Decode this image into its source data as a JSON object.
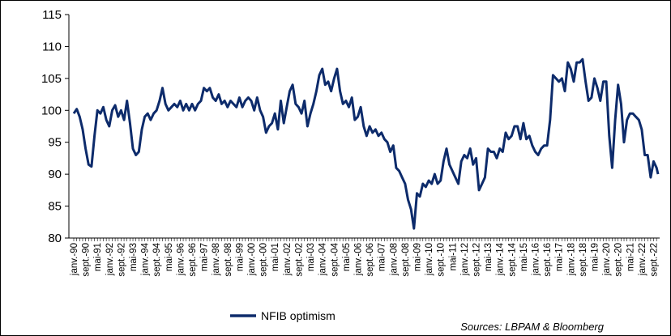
{
  "chart_data": {
    "type": "line",
    "title": "",
    "xlabel": "",
    "ylabel": "",
    "ylim": [
      80,
      115
    ],
    "y_ticks": [
      80,
      85,
      90,
      95,
      100,
      105,
      110,
      115
    ],
    "x_tick_labels": [
      "janv.-90",
      "sept.-90",
      "mai-91",
      "janv.-92",
      "sept.-92",
      "mai-93",
      "janv.-94",
      "sept.-94",
      "mai-95",
      "janv.-96",
      "sept.-96",
      "mai-97",
      "janv.-98",
      "sept.-98",
      "mai-99",
      "janv.-00",
      "sept.-00",
      "mai-01",
      "janv.-02",
      "sept.-02",
      "mai-03",
      "janv.-04",
      "sept.-04",
      "mai-05",
      "janv.-06",
      "sept.-06",
      "mai-07",
      "janv.-08",
      "sept.-08",
      "mai-09",
      "janv.-10",
      "sept.-10",
      "mai-11",
      "janv.-12",
      "sept.-12",
      "mai-13",
      "janv.-14",
      "sept.-14",
      "mai-15",
      "janv.-16",
      "sept.-16",
      "mai-17",
      "janv.-18",
      "sept.-18",
      "mai-19",
      "janv.-20",
      "sept.-20",
      "mai-21",
      "janv.-22",
      "sept.-22"
    ],
    "x_start": "1990-01",
    "x_end": "2022-12",
    "grid": false,
    "legend_position": "bottom-left",
    "series": [
      {
        "name": "NFIB optimism",
        "color": "#0d2b6b",
        "points": [
          [
            "1990-01",
            99.5
          ],
          [
            "1990-03",
            100.2
          ],
          [
            "1990-05",
            99.0
          ],
          [
            "1990-07",
            97.0
          ],
          [
            "1990-09",
            94.0
          ],
          [
            "1990-11",
            91.5
          ],
          [
            "1991-01",
            91.2
          ],
          [
            "1991-03",
            96.0
          ],
          [
            "1991-05",
            100.0
          ],
          [
            "1991-07",
            99.5
          ],
          [
            "1991-09",
            100.5
          ],
          [
            "1991-11",
            98.5
          ],
          [
            "1992-01",
            97.5
          ],
          [
            "1992-03",
            100.0
          ],
          [
            "1992-05",
            100.8
          ],
          [
            "1992-07",
            99.0
          ],
          [
            "1992-09",
            100.0
          ],
          [
            "1992-11",
            98.5
          ],
          [
            "1993-01",
            101.5
          ],
          [
            "1993-03",
            98.0
          ],
          [
            "1993-05",
            94.0
          ],
          [
            "1993-07",
            93.0
          ],
          [
            "1993-09",
            93.5
          ],
          [
            "1993-11",
            97.0
          ],
          [
            "1994-01",
            99.0
          ],
          [
            "1994-03",
            99.5
          ],
          [
            "1994-05",
            98.5
          ],
          [
            "1994-07",
            99.5
          ],
          [
            "1994-09",
            100.0
          ],
          [
            "1994-11",
            101.5
          ],
          [
            "1995-01",
            103.5
          ],
          [
            "1995-03",
            101.0
          ],
          [
            "1995-05",
            100.0
          ],
          [
            "1995-07",
            100.5
          ],
          [
            "1995-09",
            101.0
          ],
          [
            "1995-11",
            100.5
          ],
          [
            "1996-01",
            101.5
          ],
          [
            "1996-03",
            100.0
          ],
          [
            "1996-05",
            101.0
          ],
          [
            "1996-07",
            100.0
          ],
          [
            "1996-09",
            101.0
          ],
          [
            "1996-11",
            100.0
          ],
          [
            "1997-01",
            101.0
          ],
          [
            "1997-03",
            101.5
          ],
          [
            "1997-05",
            103.5
          ],
          [
            "1997-07",
            103.0
          ],
          [
            "1997-09",
            103.5
          ],
          [
            "1997-11",
            102.0
          ],
          [
            "1998-01",
            101.5
          ],
          [
            "1998-03",
            102.5
          ],
          [
            "1998-05",
            101.0
          ],
          [
            "1998-07",
            101.5
          ],
          [
            "1998-09",
            100.5
          ],
          [
            "1998-11",
            101.5
          ],
          [
            "1999-01",
            101.0
          ],
          [
            "1999-03",
            100.5
          ],
          [
            "1999-05",
            102.0
          ],
          [
            "1999-07",
            100.5
          ],
          [
            "1999-09",
            101.5
          ],
          [
            "1999-11",
            102.0
          ],
          [
            "2000-01",
            101.5
          ],
          [
            "2000-03",
            100.0
          ],
          [
            "2000-05",
            102.0
          ],
          [
            "2000-07",
            100.0
          ],
          [
            "2000-09",
            99.0
          ],
          [
            "2000-11",
            96.5
          ],
          [
            "2001-01",
            97.5
          ],
          [
            "2001-03",
            98.0
          ],
          [
            "2001-05",
            99.5
          ],
          [
            "2001-07",
            97.0
          ],
          [
            "2001-09",
            101.5
          ],
          [
            "2001-11",
            98.0
          ],
          [
            "2002-01",
            100.5
          ],
          [
            "2002-03",
            103.0
          ],
          [
            "2002-05",
            104.0
          ],
          [
            "2002-07",
            101.0
          ],
          [
            "2002-09",
            100.5
          ],
          [
            "2002-11",
            99.5
          ],
          [
            "2003-01",
            101.5
          ],
          [
            "2003-03",
            97.5
          ],
          [
            "2003-05",
            99.5
          ],
          [
            "2003-07",
            101.0
          ],
          [
            "2003-09",
            103.0
          ],
          [
            "2003-11",
            105.5
          ],
          [
            "2004-01",
            106.5
          ],
          [
            "2004-03",
            104.0
          ],
          [
            "2004-05",
            104.5
          ],
          [
            "2004-07",
            103.0
          ],
          [
            "2004-09",
            105.0
          ],
          [
            "2004-11",
            106.5
          ],
          [
            "2005-01",
            103.0
          ],
          [
            "2005-03",
            101.0
          ],
          [
            "2005-05",
            101.5
          ],
          [
            "2005-07",
            100.5
          ],
          [
            "2005-09",
            102.0
          ],
          [
            "2005-11",
            98.5
          ],
          [
            "2006-01",
            99.0
          ],
          [
            "2006-03",
            100.5
          ],
          [
            "2006-05",
            97.5
          ],
          [
            "2006-07",
            96.0
          ],
          [
            "2006-09",
            97.5
          ],
          [
            "2006-11",
            96.5
          ],
          [
            "2007-01",
            97.0
          ],
          [
            "2007-03",
            96.0
          ],
          [
            "2007-05",
            96.5
          ],
          [
            "2007-07",
            95.5
          ],
          [
            "2007-09",
            95.0
          ],
          [
            "2007-11",
            93.5
          ],
          [
            "2008-01",
            94.5
          ],
          [
            "2008-03",
            91.0
          ],
          [
            "2008-05",
            90.5
          ],
          [
            "2008-07",
            89.5
          ],
          [
            "2008-09",
            88.5
          ],
          [
            "2008-11",
            86.0
          ],
          [
            "2009-01",
            84.5
          ],
          [
            "2009-03",
            81.5
          ],
          [
            "2009-05",
            87.0
          ],
          [
            "2009-07",
            86.5
          ],
          [
            "2009-09",
            88.5
          ],
          [
            "2009-11",
            88.0
          ],
          [
            "2010-01",
            89.0
          ],
          [
            "2010-03",
            88.5
          ],
          [
            "2010-05",
            90.0
          ],
          [
            "2010-07",
            88.5
          ],
          [
            "2010-09",
            89.0
          ],
          [
            "2010-11",
            92.0
          ],
          [
            "2011-01",
            94.0
          ],
          [
            "2011-03",
            91.5
          ],
          [
            "2011-05",
            90.5
          ],
          [
            "2011-07",
            89.5
          ],
          [
            "2011-09",
            88.5
          ],
          [
            "2011-11",
            92.0
          ],
          [
            "2012-01",
            93.0
          ],
          [
            "2012-03",
            92.5
          ],
          [
            "2012-05",
            94.0
          ],
          [
            "2012-07",
            91.5
          ],
          [
            "2012-09",
            92.5
          ],
          [
            "2012-11",
            87.5
          ],
          [
            "2013-01",
            88.5
          ],
          [
            "2013-03",
            89.5
          ],
          [
            "2013-05",
            94.0
          ],
          [
            "2013-07",
            93.5
          ],
          [
            "2013-09",
            93.5
          ],
          [
            "2013-11",
            92.5
          ],
          [
            "2014-01",
            94.0
          ],
          [
            "2014-03",
            93.5
          ],
          [
            "2014-05",
            96.5
          ],
          [
            "2014-07",
            95.5
          ],
          [
            "2014-09",
            96.0
          ],
          [
            "2014-11",
            97.5
          ],
          [
            "2015-01",
            97.5
          ],
          [
            "2015-03",
            95.5
          ],
          [
            "2015-05",
            98.0
          ],
          [
            "2015-07",
            95.5
          ],
          [
            "2015-09",
            96.0
          ],
          [
            "2015-11",
            94.5
          ],
          [
            "2016-01",
            93.5
          ],
          [
            "2016-03",
            93.0
          ],
          [
            "2016-05",
            94.0
          ],
          [
            "2016-07",
            94.5
          ],
          [
            "2016-09",
            94.5
          ],
          [
            "2016-11",
            98.5
          ],
          [
            "2017-01",
            105.5
          ],
          [
            "2017-03",
            105.0
          ],
          [
            "2017-05",
            104.5
          ],
          [
            "2017-07",
            105.0
          ],
          [
            "2017-09",
            103.0
          ],
          [
            "2017-11",
            107.5
          ],
          [
            "2018-01",
            106.5
          ],
          [
            "2018-03",
            104.5
          ],
          [
            "2018-05",
            107.5
          ],
          [
            "2018-07",
            107.5
          ],
          [
            "2018-09",
            108.0
          ],
          [
            "2018-11",
            104.5
          ],
          [
            "2019-01",
            101.5
          ],
          [
            "2019-03",
            102.0
          ],
          [
            "2019-05",
            105.0
          ],
          [
            "2019-07",
            103.5
          ],
          [
            "2019-09",
            101.5
          ],
          [
            "2019-11",
            104.5
          ],
          [
            "2020-01",
            104.5
          ],
          [
            "2020-03",
            96.0
          ],
          [
            "2020-05",
            91.0
          ],
          [
            "2020-07",
            98.5
          ],
          [
            "2020-09",
            104.0
          ],
          [
            "2020-11",
            101.0
          ],
          [
            "2021-01",
            95.0
          ],
          [
            "2021-03",
            98.5
          ],
          [
            "2021-05",
            99.5
          ],
          [
            "2021-07",
            99.5
          ],
          [
            "2021-09",
            99.0
          ],
          [
            "2021-11",
            98.5
          ],
          [
            "2022-01",
            97.0
          ],
          [
            "2022-03",
            93.0
          ],
          [
            "2022-05",
            93.0
          ],
          [
            "2022-07",
            89.5
          ],
          [
            "2022-09",
            92.0
          ],
          [
            "2022-11",
            91.0
          ],
          [
            "2022-12",
            90.0
          ]
        ]
      }
    ]
  },
  "legend": {
    "label": "NFIB optimism"
  },
  "source_note": "Sources: LBPAM & Bloomberg"
}
